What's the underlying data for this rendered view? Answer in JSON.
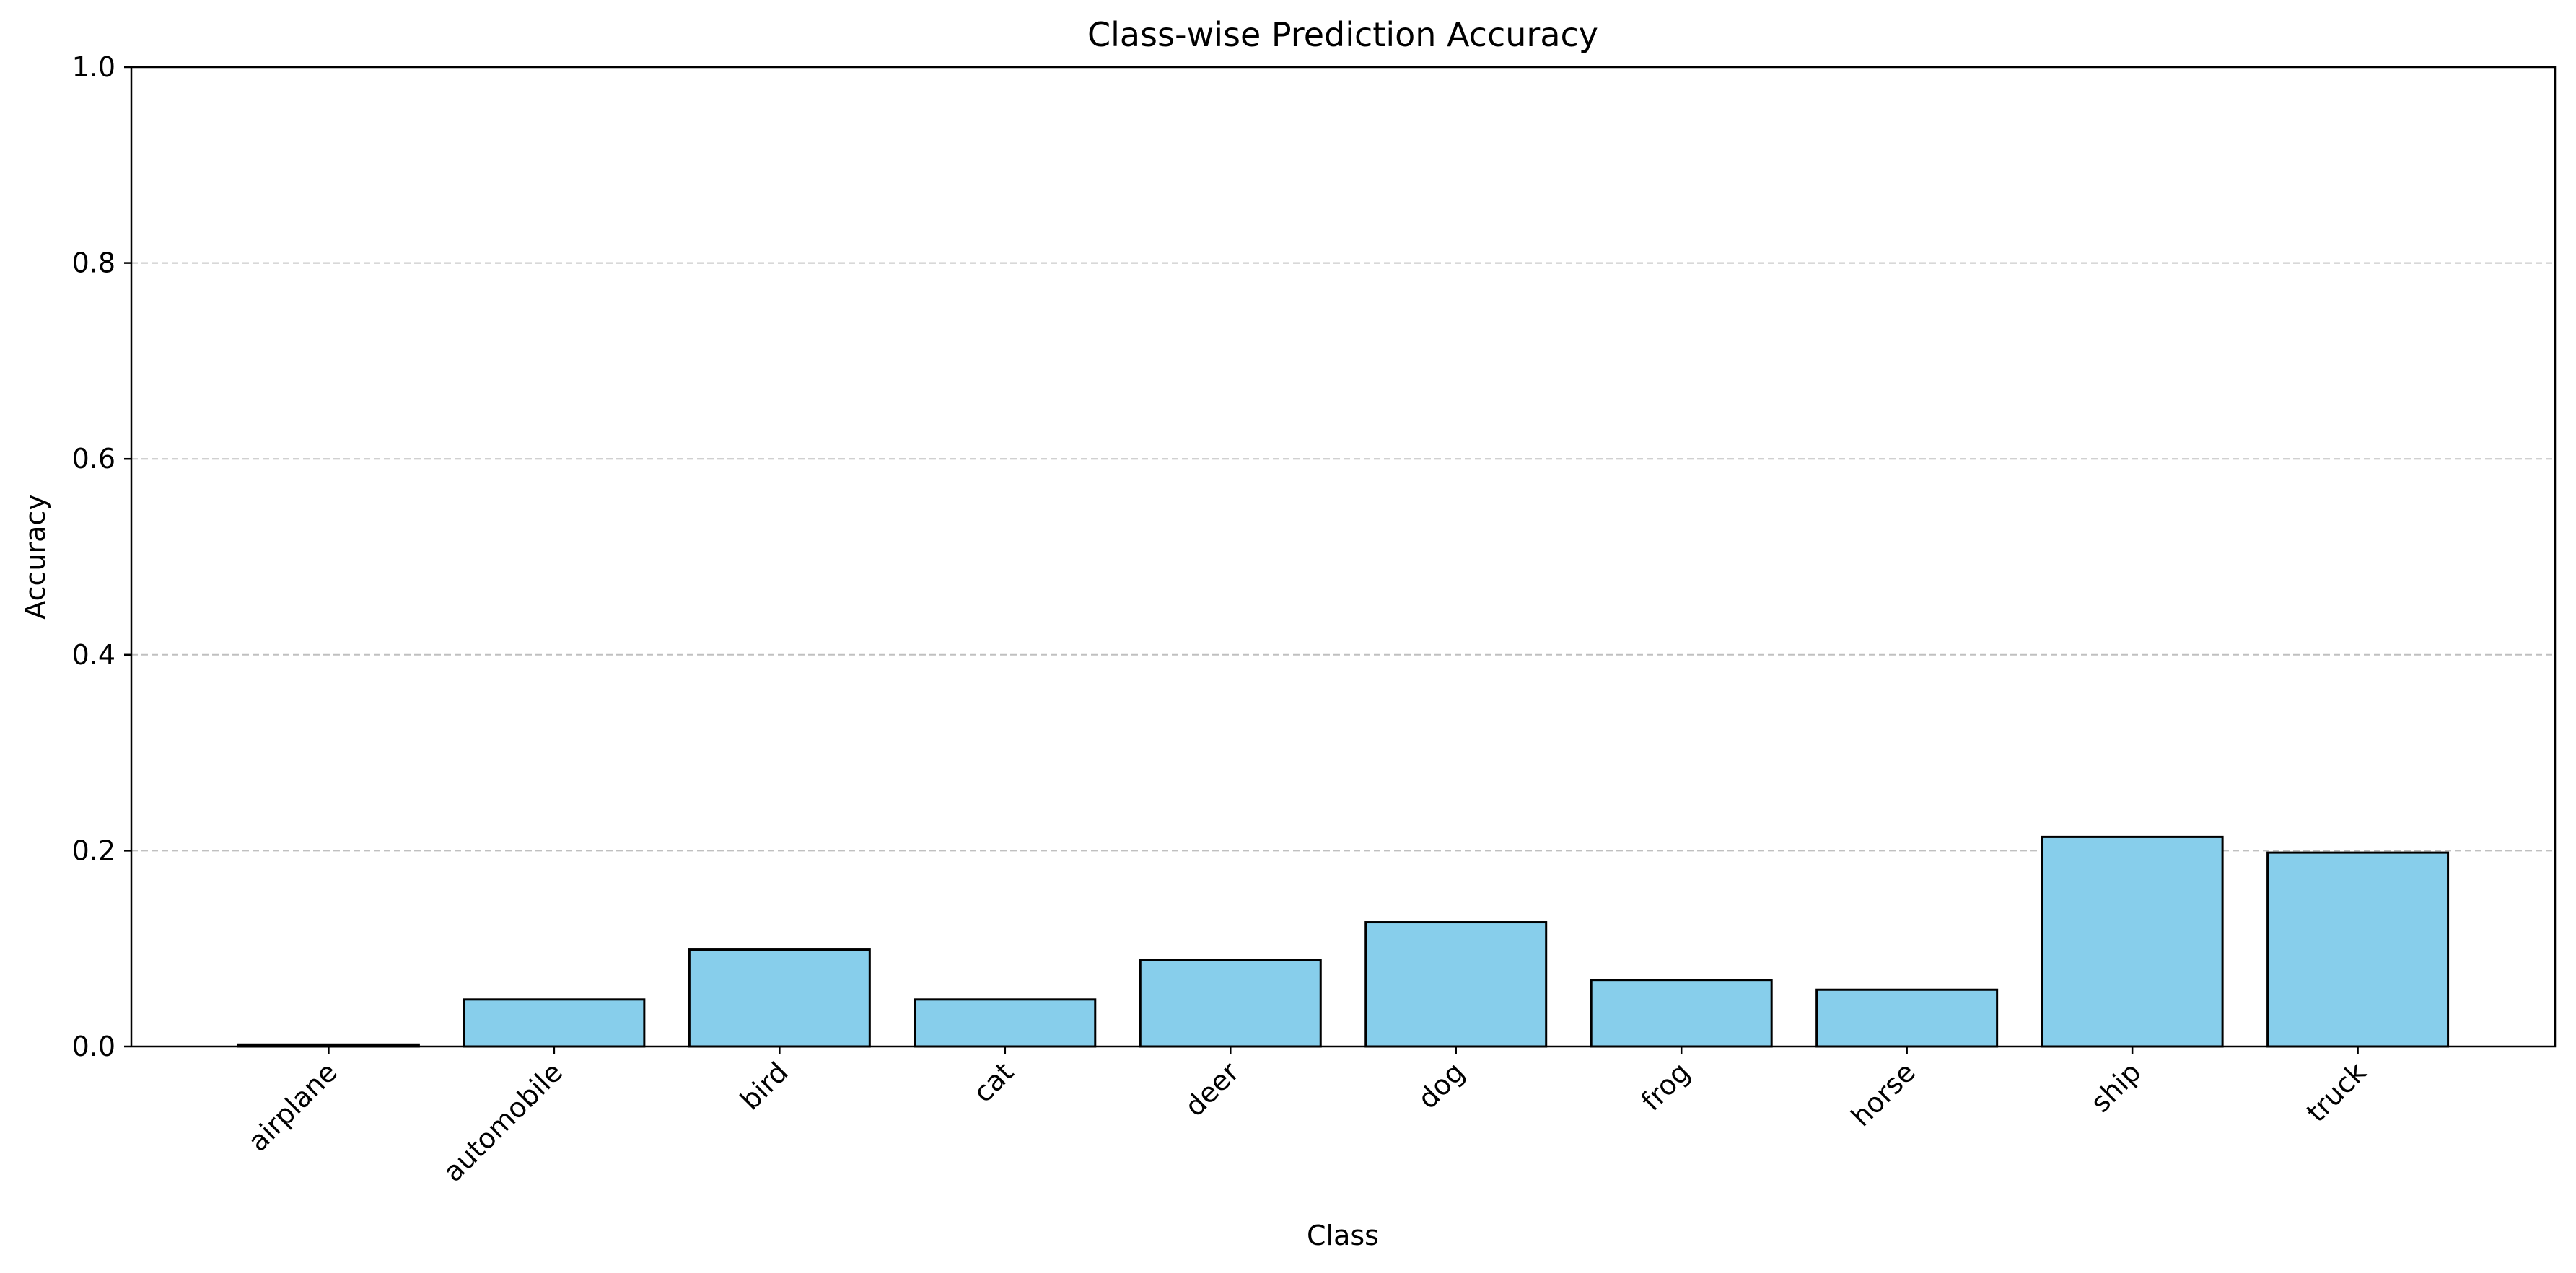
{
  "chart_data": {
    "type": "bar",
    "title": "Class-wise Prediction Accuracy",
    "xlabel": "Class",
    "ylabel": "Accuracy",
    "categories": [
      "airplane",
      "automobile",
      "bird",
      "cat",
      "deer",
      "dog",
      "frog",
      "horse",
      "ship",
      "truck"
    ],
    "values": [
      0.002,
      0.048,
      0.099,
      0.048,
      0.088,
      0.127,
      0.068,
      0.058,
      0.214,
      0.198
    ],
    "ylim": [
      0,
      1.0
    ],
    "yticks": [
      "0.0",
      "0.2",
      "0.4",
      "0.6",
      "0.8",
      "1.0"
    ],
    "grid": "y-axis dashed",
    "bar_color": "#87CEEB",
    "edge_color": "#000000",
    "grid_color": "#c0c0c0"
  }
}
